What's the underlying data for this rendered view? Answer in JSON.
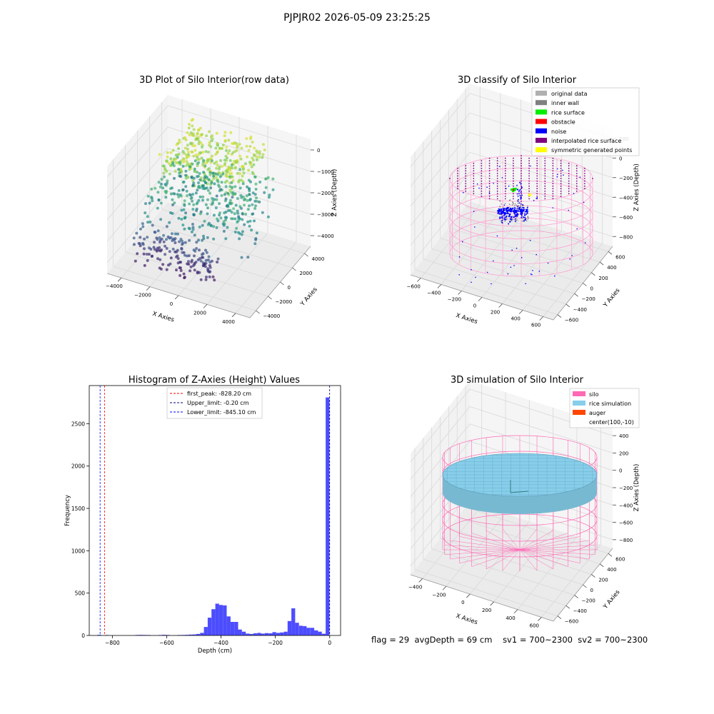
{
  "suptitle": "PJPJR02 2026-05-09 23:25:25",
  "status_line": {
    "flag": "flag = 29",
    "avg_depth": "avgDepth = 69 cm",
    "sv1": "sv1 = 700~2300",
    "sv2": "sv2 = 700~2300"
  },
  "colors": {
    "pane": "#f2f2f2",
    "grid": "#d9d9d9",
    "original_data": "#b0b0b0",
    "inner_wall": "#808080",
    "rice_surface": "#00ee00",
    "obstacle": "#ff0000",
    "noise": "#0000ff",
    "interpolated_rice_surface": "#800080",
    "symmetric_generated_points": "#ffff00",
    "silo": "#ff69b4",
    "rice_simulation": "#87ceeb",
    "auger": "#ff4500",
    "hist_bar": "#4d4dff",
    "first_peak_line": "#ff0000",
    "upper_limit_line": "#000080",
    "lower_limit_line": "#0000ff"
  },
  "chart_data": [
    {
      "type": "scatter",
      "subtype": "3d",
      "title": "3D Plot of Silo Interior(row data)",
      "xlabel": "X Axies",
      "ylabel": "Y Axies",
      "zlabel": "Z Axies (Depth)",
      "xticks": [
        "−4000",
        "−2000",
        "0",
        "2000",
        "4000"
      ],
      "yticks": [
        "−4000",
        "−2000",
        "0",
        "2000",
        "4000"
      ],
      "zticks": [
        "−4000",
        "−3000",
        "−2000",
        "−1000",
        "0"
      ],
      "xlim": [
        -4500,
        4500
      ],
      "ylim": [
        -4500,
        4500
      ],
      "zlim": [
        -4500,
        0
      ],
      "colormap": "viridis (by depth)",
      "point_clusters": [
        {
          "x": [
            -2500,
            2500
          ],
          "y": [
            -2000,
            3000
          ],
          "z": [
            -1000,
            -200
          ],
          "count": 320
        },
        {
          "x": [
            -3000,
            3000
          ],
          "y": [
            -3000,
            3000
          ],
          "z": [
            -2500,
            -1500
          ],
          "count": 220
        },
        {
          "x": [
            -3500,
            1500
          ],
          "y": [
            -3500,
            -1500
          ],
          "z": [
            -4200,
            -3000
          ],
          "count": 160
        },
        {
          "x": [
            -3500,
            3500
          ],
          "y": [
            -3500,
            3500
          ],
          "z": [
            -3000,
            -2000
          ],
          "count": 120
        }
      ]
    },
    {
      "type": "scatter",
      "subtype": "3d",
      "title": "3D classify of Silo Interior",
      "xlabel": "X Axies",
      "ylabel": "Y Axies",
      "zlabel": "Z Axies (Depth)",
      "xticks": [
        "−600",
        "−400",
        "−200",
        "0",
        "200",
        "400",
        "600"
      ],
      "yticks": [
        "−600",
        "−400",
        "−200",
        "0",
        "200",
        "400",
        "600"
      ],
      "zticks": [
        "−800",
        "−600",
        "−400",
        "−200",
        "0",
        "200"
      ],
      "xlim": [
        -650,
        650
      ],
      "ylim": [
        -650,
        650
      ],
      "zlim": [
        -900,
        300
      ],
      "legend": [
        {
          "label": "original data",
          "color": "#b0b0b0"
        },
        {
          "label": "inner wall",
          "color": "#808080"
        },
        {
          "label": "rice surface",
          "color": "#00ee00"
        },
        {
          "label": "obstacle",
          "color": "#ff0000"
        },
        {
          "label": "noise",
          "color": "#0000ff"
        },
        {
          "label": "interpolated rice surface",
          "color": "#800080"
        },
        {
          "label": "symmetric generated points",
          "color": "#ffff00"
        }
      ],
      "legend_position": "top-right",
      "silo_cylinder": {
        "radius": 600,
        "z_bottom": -850,
        "z_top": 0
      }
    },
    {
      "type": "bar",
      "subtype": "histogram",
      "title": "Histogram of Z-Axies (Height) Values",
      "xlabel": "Depth (cm)",
      "ylabel": "Frequency",
      "xticks": [
        -800,
        -600,
        -400,
        -200,
        0
      ],
      "yticks": [
        0,
        500,
        1000,
        1500,
        2000,
        2500
      ],
      "xlim": [
        -885,
        40
      ],
      "ylim": [
        0,
        2950
      ],
      "bin_width": 14,
      "bins": [
        {
          "x": -848,
          "y": 8
        },
        {
          "x": -820,
          "y": 5
        },
        {
          "x": -708,
          "y": 6
        },
        {
          "x": -694,
          "y": 7
        },
        {
          "x": -680,
          "y": 6
        },
        {
          "x": -666,
          "y": 5
        },
        {
          "x": -624,
          "y": 5
        },
        {
          "x": -610,
          "y": 8
        },
        {
          "x": -596,
          "y": 6
        },
        {
          "x": -554,
          "y": 5
        },
        {
          "x": -540,
          "y": 6
        },
        {
          "x": -526,
          "y": 8
        },
        {
          "x": -512,
          "y": 10
        },
        {
          "x": -498,
          "y": 12
        },
        {
          "x": -484,
          "y": 18
        },
        {
          "x": -470,
          "y": 30
        },
        {
          "x": -456,
          "y": 100
        },
        {
          "x": -442,
          "y": 210
        },
        {
          "x": -428,
          "y": 310
        },
        {
          "x": -414,
          "y": 375
        },
        {
          "x": -400,
          "y": 360
        },
        {
          "x": -386,
          "y": 355
        },
        {
          "x": -372,
          "y": 225
        },
        {
          "x": -358,
          "y": 160
        },
        {
          "x": -344,
          "y": 160
        },
        {
          "x": -330,
          "y": 70
        },
        {
          "x": -316,
          "y": 45
        },
        {
          "x": -302,
          "y": 22
        },
        {
          "x": -288,
          "y": 18
        },
        {
          "x": -274,
          "y": 25
        },
        {
          "x": -260,
          "y": 30
        },
        {
          "x": -246,
          "y": 22
        },
        {
          "x": -232,
          "y": 28
        },
        {
          "x": -218,
          "y": 25
        },
        {
          "x": -204,
          "y": 40
        },
        {
          "x": -190,
          "y": 30
        },
        {
          "x": -176,
          "y": 35
        },
        {
          "x": -162,
          "y": 45
        },
        {
          "x": -148,
          "y": 170
        },
        {
          "x": -134,
          "y": 320
        },
        {
          "x": -120,
          "y": 150
        },
        {
          "x": -106,
          "y": 115
        },
        {
          "x": -92,
          "y": 110
        },
        {
          "x": -78,
          "y": 90
        },
        {
          "x": -64,
          "y": 90
        },
        {
          "x": -50,
          "y": 60
        },
        {
          "x": -36,
          "y": 45
        },
        {
          "x": -22,
          "y": 20
        },
        {
          "x": -8,
          "y": 2810
        }
      ],
      "vlines": [
        {
          "label": "first_peak: -828.20 cm",
          "x": -828.2,
          "color": "#ff0000"
        },
        {
          "label": "Upper_limit: -0.20 cm",
          "x": -0.2,
          "color": "#000080"
        },
        {
          "label": "Lower_limit: -845.10 cm",
          "x": -845.1,
          "color": "#0000ff"
        }
      ],
      "legend_position": "top-center"
    },
    {
      "type": "scatter",
      "subtype": "3d",
      "title": "3D simulation of Silo Interior",
      "xlabel": "X Axies",
      "ylabel": "Y Axies",
      "zlabel": "Z Axies (Depth)",
      "xticks": [
        "−400",
        "−200",
        "0",
        "200",
        "400",
        "600"
      ],
      "yticks": [
        "−600",
        "−400",
        "−200",
        "0",
        "200",
        "400",
        "600"
      ],
      "zticks": [
        "−800",
        "−600",
        "−400",
        "−200",
        "0",
        "200",
        "400"
      ],
      "xlim": [
        -500,
        700
      ],
      "ylim": [
        -700,
        700
      ],
      "zlim": [
        -900,
        450
      ],
      "legend": [
        {
          "label": "silo",
          "color": "#ff69b4"
        },
        {
          "label": "rice simulation",
          "color": "#87ceeb"
        },
        {
          "label": "auger",
          "color": "#ff4500"
        },
        {
          "label": "center(100,-10)",
          "color": ""
        }
      ],
      "legend_position": "top-right",
      "silo_cylinder": {
        "radius": 600,
        "z_bottom": -850,
        "z_top": 0
      },
      "rice_surface_depth": -69
    }
  ]
}
